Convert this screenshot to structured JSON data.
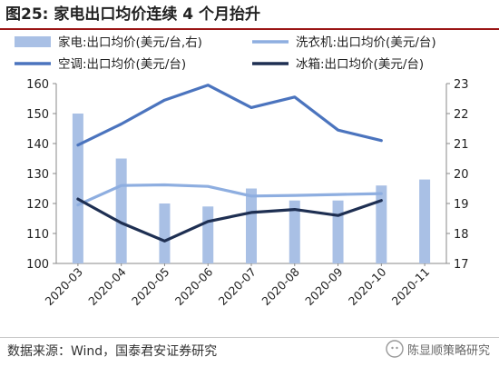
{
  "title": "图25: 家电出口均价连续 4 个月抬升",
  "source": "数据来源：Wind，国泰君安证券研究",
  "watermark": "陈显顺策略研究",
  "colors": {
    "title_rule": "#9a1515",
    "appliance_bar": "#a9c0e5",
    "washer_line": "#8eaee0",
    "ac_line": "#4b74be",
    "fridge_line": "#1e2f52"
  },
  "chart_data": {
    "type": "bar",
    "categories": [
      "2020-03",
      "2020-04",
      "2020-05",
      "2020-06",
      "2020-07",
      "2020-08",
      "2020-09",
      "2020-10",
      "2020-11"
    ],
    "left_axis": {
      "ylim": [
        100,
        160
      ],
      "ticks": [
        100,
        110,
        120,
        130,
        140,
        150,
        160
      ]
    },
    "right_axis": {
      "ylim": [
        17,
        23
      ],
      "ticks": [
        17,
        18,
        19,
        20,
        21,
        22,
        23
      ]
    },
    "grid": false,
    "legend_position": "top",
    "series": [
      {
        "name": "家电:出口均价(美元/台,右)",
        "type": "bar",
        "axis": "right",
        "color": "#a9c0e5",
        "values": [
          22.0,
          20.5,
          19.0,
          18.9,
          19.5,
          19.1,
          19.1,
          19.6,
          19.8
        ]
      },
      {
        "name": "洗衣机:出口均价(美元/台)",
        "type": "line",
        "axis": "left",
        "color": "#8eaee0",
        "values": [
          119.5,
          126,
          126.2,
          125.7,
          122.5,
          122.7,
          123.0,
          123.3,
          null
        ]
      },
      {
        "name": "空调:出口均价(美元/台)",
        "type": "line",
        "axis": "left",
        "color": "#4b74be",
        "values": [
          139.5,
          146.5,
          154.5,
          159.5,
          152.0,
          155.5,
          144.5,
          141.0,
          null
        ]
      },
      {
        "name": "冰箱:出口均价(美元/台)",
        "type": "line",
        "axis": "left",
        "color": "#1e2f52",
        "values": [
          121.5,
          113.5,
          107.5,
          114.0,
          117.0,
          118.0,
          116.0,
          121.0,
          null
        ]
      }
    ]
  }
}
